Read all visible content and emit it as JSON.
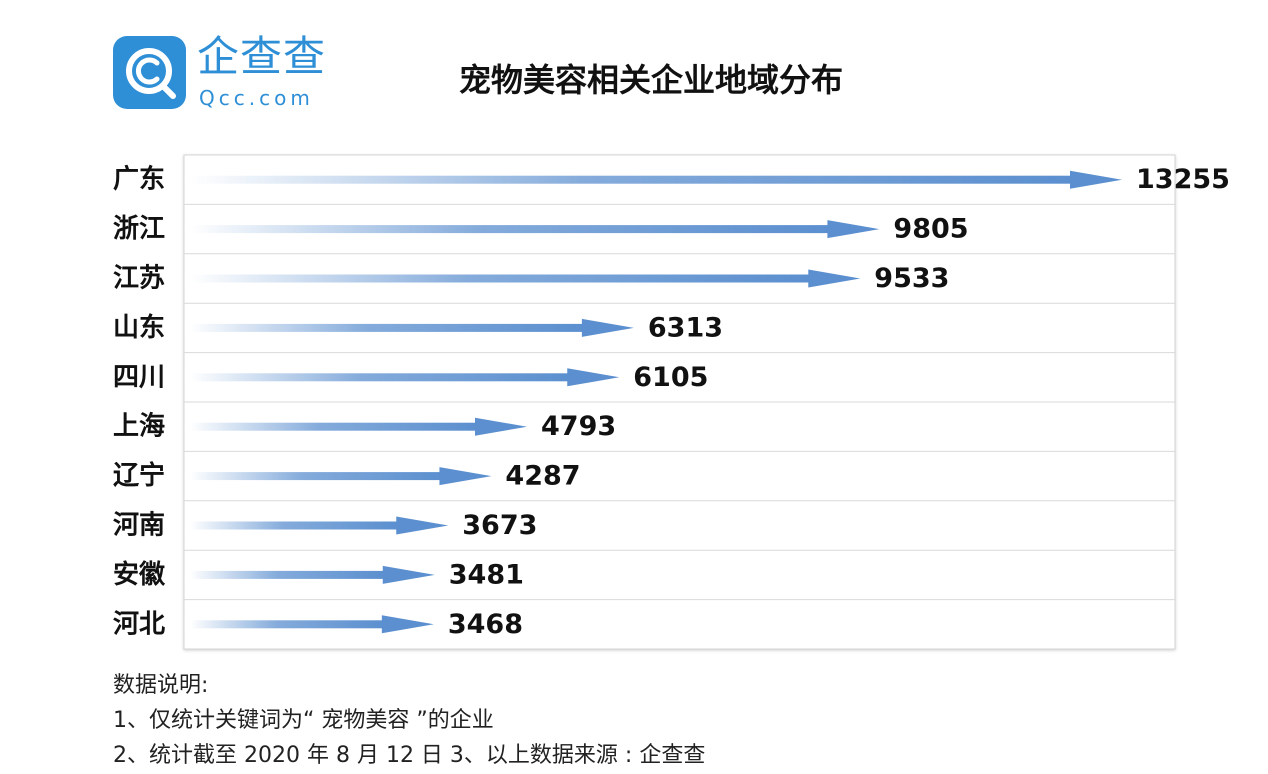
{
  "logo": {
    "cn_text": "企查查",
    "en_text": "Qcc.com",
    "icon_name": "qcc-logo-icon",
    "brand_color": "#2f8fd6"
  },
  "chart_data": {
    "type": "bar",
    "title": "宠物美容相关企业地域分布",
    "categories": [
      "广东",
      "浙江",
      "江苏",
      "山东",
      "四川",
      "上海",
      "辽宁",
      "河南",
      "安徽",
      "河北"
    ],
    "values": [
      13255,
      9805,
      9533,
      6313,
      6105,
      4793,
      4287,
      3673,
      3481,
      3468
    ],
    "orientation": "horizontal",
    "bar_style": "gradient-arrow",
    "bar_color": "#5b8fcf",
    "grid": true
  },
  "notes": {
    "heading": "数据说明:",
    "line1": "1、仅统计关键词为“ 宠物美容 ”的企业",
    "line2": "2、统计截至 2020 年 8 月 12 日 3、以上数据来源 : 企查查"
  }
}
